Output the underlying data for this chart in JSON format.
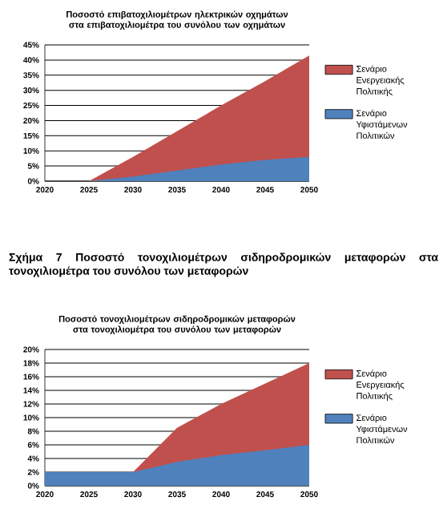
{
  "chart_data": [
    {
      "type": "area",
      "title": "Ποσοστό επιβατοχιλιομέτρων ηλεκτρικών οχημάτων στα επιβατοχιλιομέτρα του συνόλου των οχημάτων",
      "x": [
        2020,
        2025,
        2030,
        2035,
        2040,
        2045,
        2050
      ],
      "series": [
        {
          "name": "Σενάριο Ενεργειακής Πολιτικής",
          "color": "#c0504d",
          "values": [
            0,
            0,
            8,
            16.5,
            25,
            33,
            41.5
          ]
        },
        {
          "name": "Σενάριο Υφιστάμενων Πολιτικών",
          "color": "#4f81bd",
          "values": [
            0,
            0,
            1.5,
            3.5,
            5.5,
            7,
            8
          ]
        }
      ],
      "xlim": [
        2020,
        2050
      ],
      "xticks": [
        2020,
        2025,
        2030,
        2035,
        2040,
        2045,
        2050
      ],
      "ylim": [
        0,
        45
      ],
      "yticks": [
        {
          "value": 0,
          "label": "0%"
        },
        {
          "value": 5,
          "label": "5%"
        },
        {
          "value": 10,
          "label": "10%"
        },
        {
          "value": 15,
          "label": "15%"
        },
        {
          "value": 20,
          "label": "20%"
        },
        {
          "value": 25,
          "label": "25%"
        },
        {
          "value": 30,
          "label": "30%"
        },
        {
          "value": 35,
          "label": "35%"
        },
        {
          "value": 40,
          "label": "40%"
        },
        {
          "value": 45,
          "label": "45%"
        }
      ],
      "grid": "y",
      "legend": "right"
    },
    {
      "type": "area",
      "title": "Ποσοστό τονοχιλιομέτρων σιδηροδρομικών μεταφορών στα τονοχιλιομέτρα του συνόλου των μεταφορών",
      "annotations": [
        "Σχήμα 7 Ποσοστό τονοχιλιομέτρων σιδηροδρομικών μεταφορών στα τονοχιλιομέτρα του συνόλου των μεταφορών"
      ],
      "x": [
        2020,
        2025,
        2030,
        2035,
        2040,
        2045,
        2050
      ],
      "series": [
        {
          "name": "Σενάριο Ενεργειακής Πολιτικής",
          "color": "#c0504d",
          "values": [
            2,
            2,
            2,
            8.5,
            12,
            15,
            18
          ]
        },
        {
          "name": "Σενάριο Υφιστάμενων Πολιτικών",
          "color": "#4f81bd",
          "values": [
            2,
            2,
            2,
            3.5,
            4.5,
            5.2,
            6
          ]
        }
      ],
      "xlim": [
        2020,
        2050
      ],
      "xticks": [
        2020,
        2025,
        2030,
        2035,
        2040,
        2045,
        2050
      ],
      "ylim": [
        0,
        20
      ],
      "yticks": [
        {
          "value": 0,
          "label": "0%"
        },
        {
          "value": 2,
          "label": "2%"
        },
        {
          "value": 4,
          "label": "4%"
        },
        {
          "value": 6,
          "label": "6%"
        },
        {
          "value": 8,
          "label": "8%"
        },
        {
          "value": 10,
          "label": "10%"
        },
        {
          "value": 12,
          "label": "12%"
        },
        {
          "value": 14,
          "label": "14%"
        },
        {
          "value": 16,
          "label": "16%"
        },
        {
          "value": 18,
          "label": "18%"
        },
        {
          "value": 20,
          "label": "20%"
        }
      ],
      "grid": "y",
      "legend": "right"
    }
  ]
}
